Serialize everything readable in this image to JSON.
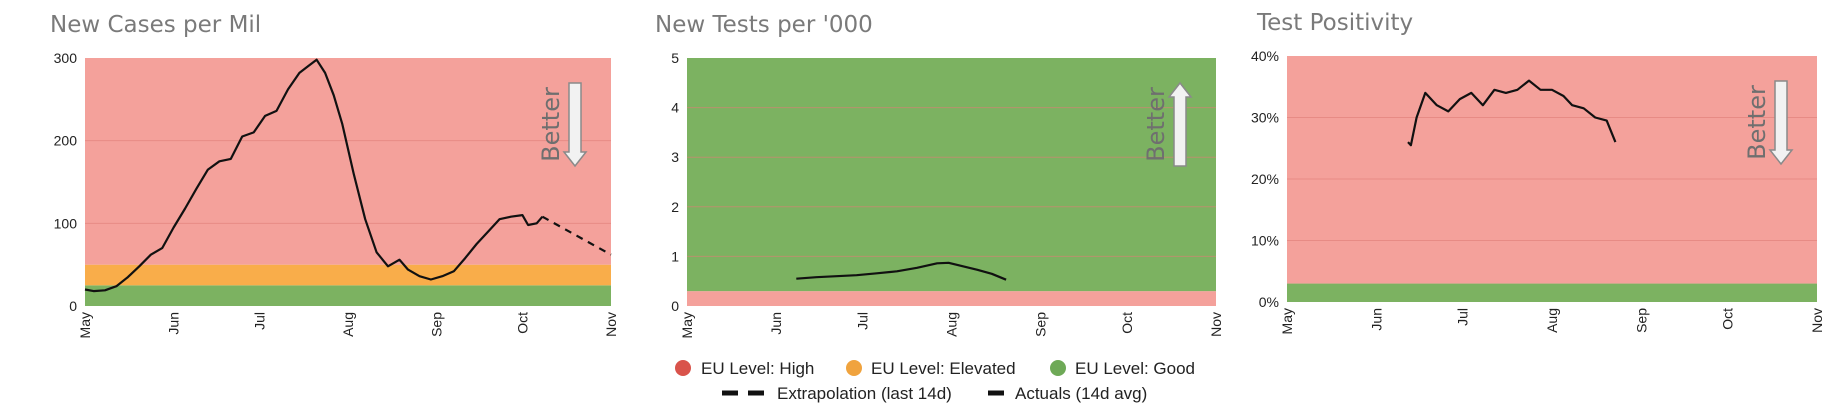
{
  "colors": {
    "high": "#f4a19b",
    "elevated": "#f9ad4a",
    "good": "#7cb261",
    "legend_high": "#d9534b",
    "legend_elevated": "#f0a33e",
    "legend_good": "#6ea957",
    "grid": "#e07e78",
    "line": "#111111"
  },
  "legend": {
    "high": "EU Level: High",
    "elevated": "EU Level: Elevated",
    "good": "EU Level: Good",
    "extrapolation": "Extrapolation (last 14d)",
    "actuals": "Actuals (14d avg)"
  },
  "chart_data": [
    {
      "type": "line",
      "title": "New Cases per Mil",
      "x_ticks": [
        "May",
        "Jun",
        "Jul",
        "Aug",
        "Sep",
        "Oct",
        "Nov"
      ],
      "x_range": [
        "2020-05-01",
        "2020-11-01"
      ],
      "ylim": [
        0,
        300
      ],
      "y_ticks": [
        "0",
        "100",
        "200",
        "300"
      ],
      "bands": [
        {
          "level": "good",
          "from": 0,
          "to": 25
        },
        {
          "level": "elevated",
          "from": 25,
          "to": 50
        },
        {
          "level": "high",
          "from": 50,
          "to": 300
        }
      ],
      "arrow": {
        "label": "Better",
        "direction": "down"
      },
      "series": [
        {
          "style": "solid",
          "points": [
            [
              "2020-05-01",
              20
            ],
            [
              "2020-05-04",
              18
            ],
            [
              "2020-05-08",
              19
            ],
            [
              "2020-05-12",
              24
            ],
            [
              "2020-05-16",
              35
            ],
            [
              "2020-05-20",
              48
            ],
            [
              "2020-05-24",
              62
            ],
            [
              "2020-05-28",
              70
            ],
            [
              "2020-06-01",
              95
            ],
            [
              "2020-06-05",
              118
            ],
            [
              "2020-06-09",
              142
            ],
            [
              "2020-06-13",
              165
            ],
            [
              "2020-06-17",
              175
            ],
            [
              "2020-06-21",
              178
            ],
            [
              "2020-06-25",
              205
            ],
            [
              "2020-06-29",
              210
            ],
            [
              "2020-07-03",
              230
            ],
            [
              "2020-07-07",
              236
            ],
            [
              "2020-07-11",
              262
            ],
            [
              "2020-07-15",
              282
            ],
            [
              "2020-07-18",
              290
            ],
            [
              "2020-07-21",
              298
            ],
            [
              "2020-07-24",
              282
            ],
            [
              "2020-07-27",
              255
            ],
            [
              "2020-07-30",
              220
            ],
            [
              "2020-08-03",
              160
            ],
            [
              "2020-08-07",
              105
            ],
            [
              "2020-08-11",
              65
            ],
            [
              "2020-08-15",
              48
            ],
            [
              "2020-08-19",
              56
            ],
            [
              "2020-08-22",
              44
            ],
            [
              "2020-08-26",
              36
            ],
            [
              "2020-08-30",
              32
            ],
            [
              "2020-09-03",
              36
            ],
            [
              "2020-09-07",
              42
            ],
            [
              "2020-09-11",
              58
            ],
            [
              "2020-09-15",
              75
            ],
            [
              "2020-09-19",
              90
            ],
            [
              "2020-09-23",
              105
            ],
            [
              "2020-09-27",
              108
            ],
            [
              "2020-10-01",
              110
            ],
            [
              "2020-10-03",
              98
            ],
            [
              "2020-10-06",
              100
            ],
            [
              "2020-10-08",
              108
            ]
          ]
        },
        {
          "style": "dashed",
          "points": [
            [
              "2020-10-08",
              108
            ],
            [
              "2020-11-01",
              62
            ]
          ]
        }
      ]
    },
    {
      "type": "line",
      "title": "New Tests per '000",
      "x_ticks": [
        "May",
        "Jun",
        "Jul",
        "Aug",
        "Sep",
        "Oct",
        "Nov"
      ],
      "x_range": [
        "2020-05-01",
        "2020-11-01"
      ],
      "ylim": [
        0,
        5
      ],
      "y_ticks": [
        "0",
        "1",
        "2",
        "3",
        "4",
        "5"
      ],
      "bands": [
        {
          "level": "high",
          "from": 0,
          "to": 0.3
        },
        {
          "level": "good",
          "from": 0.3,
          "to": 5
        }
      ],
      "arrow": {
        "label": "Better",
        "direction": "up"
      },
      "series": [
        {
          "style": "solid",
          "points": [
            [
              "2020-06-08",
              0.55
            ],
            [
              "2020-06-15",
              0.58
            ],
            [
              "2020-06-22",
              0.6
            ],
            [
              "2020-06-29",
              0.62
            ],
            [
              "2020-07-06",
              0.66
            ],
            [
              "2020-07-13",
              0.7
            ],
            [
              "2020-07-20",
              0.77
            ],
            [
              "2020-07-27",
              0.86
            ],
            [
              "2020-07-31",
              0.87
            ],
            [
              "2020-08-05",
              0.8
            ],
            [
              "2020-08-10",
              0.73
            ],
            [
              "2020-08-15",
              0.65
            ],
            [
              "2020-08-20",
              0.53
            ]
          ]
        }
      ]
    },
    {
      "type": "line",
      "title": "Test Positivity",
      "x_ticks": [
        "May",
        "Jun",
        "Jul",
        "Aug",
        "Sep",
        "Oct",
        "Nov"
      ],
      "x_range": [
        "2020-05-01",
        "2020-11-01"
      ],
      "ylim": [
        0,
        0.4
      ],
      "y_ticks": [
        "0%",
        "10%",
        "20%",
        "30%",
        "40%"
      ],
      "bands": [
        {
          "level": "good",
          "from": 0,
          "to": 0.03
        },
        {
          "level": "high",
          "from": 0.03,
          "to": 0.4
        }
      ],
      "arrow": {
        "label": "Better",
        "direction": "down"
      },
      "series": [
        {
          "style": "solid",
          "points": [
            [
              "2020-06-12",
              0.26
            ],
            [
              "2020-06-13",
              0.255
            ],
            [
              "2020-06-15",
              0.3
            ],
            [
              "2020-06-18",
              0.34
            ],
            [
              "2020-06-22",
              0.32
            ],
            [
              "2020-06-26",
              0.31
            ],
            [
              "2020-06-30",
              0.33
            ],
            [
              "2020-07-04",
              0.34
            ],
            [
              "2020-07-08",
              0.32
            ],
            [
              "2020-07-12",
              0.345
            ],
            [
              "2020-07-16",
              0.34
            ],
            [
              "2020-07-20",
              0.345
            ],
            [
              "2020-07-24",
              0.36
            ],
            [
              "2020-07-28",
              0.345
            ],
            [
              "2020-08-01",
              0.345
            ],
            [
              "2020-08-05",
              0.335
            ],
            [
              "2020-08-08",
              0.32
            ],
            [
              "2020-08-12",
              0.315
            ],
            [
              "2020-08-16",
              0.3
            ],
            [
              "2020-08-20",
              0.295
            ],
            [
              "2020-08-23",
              0.26
            ]
          ]
        }
      ]
    }
  ]
}
